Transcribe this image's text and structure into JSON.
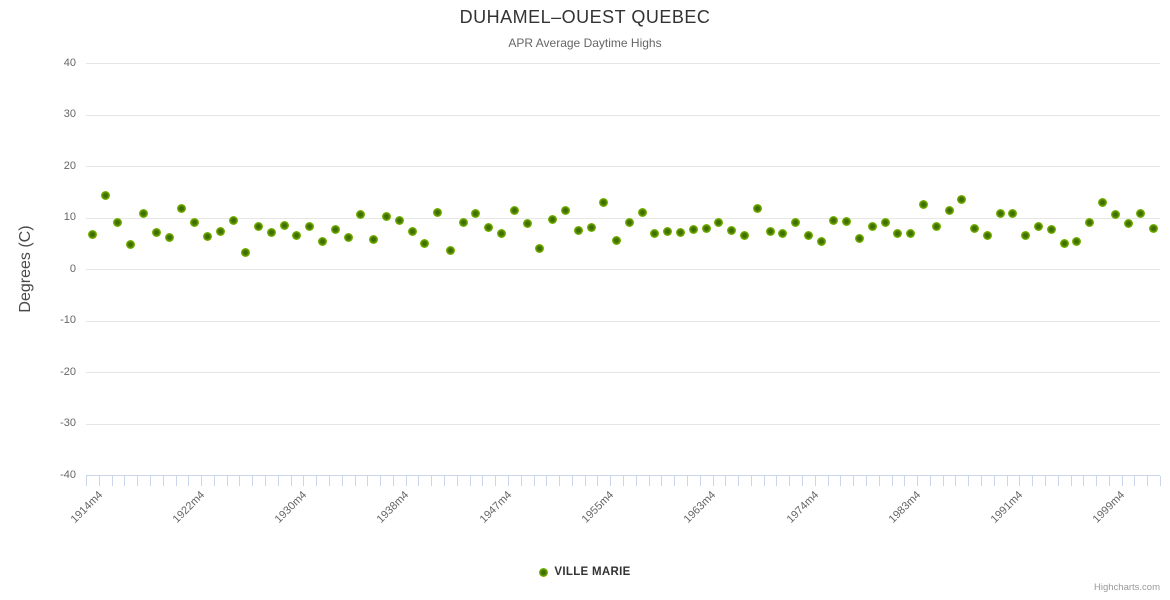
{
  "credits": "Highcharts.com",
  "chart_data": {
    "type": "scatter",
    "title": "DUHAMEL–OUEST QUEBEC",
    "subtitle": "APR Average Daytime Highs",
    "xlabel": "",
    "ylabel": "Degrees (C)",
    "ylim": [
      -40,
      40
    ],
    "y_ticks": [
      40,
      30,
      20,
      10,
      0,
      -10,
      -20,
      -30,
      -40
    ],
    "grid": "horizontal",
    "legend_position": "bottom",
    "x_tick_indices": [
      0,
      8,
      16,
      24,
      32,
      40,
      48,
      56,
      64,
      72,
      80
    ],
    "x_tick_labels": [
      "1914m4",
      "1922m4",
      "1930m4",
      "1938m4",
      "1947m4",
      "1955m4",
      "1963m4",
      "1974m4",
      "1983m4",
      "1991m4",
      "1999m4"
    ],
    "series": [
      {
        "name": "VILLE MARIE",
        "values": [
          6.7,
          14.2,
          9.1,
          4.8,
          10.8,
          7.1,
          6.2,
          11.7,
          9.0,
          6.3,
          7.2,
          9.5,
          3.3,
          8.3,
          7.0,
          8.5,
          6.5,
          8.2,
          5.4,
          7.7,
          6.2,
          10.5,
          5.7,
          10.2,
          9.4,
          7.2,
          4.9,
          11.0,
          3.6,
          9.0,
          10.8,
          8.0,
          6.9,
          11.3,
          8.9,
          3.9,
          9.7,
          11.4,
          7.5,
          8.0,
          12.9,
          5.6,
          9.0,
          10.9,
          6.9,
          7.2,
          7.0,
          7.6,
          7.8,
          9.1,
          7.5,
          6.6,
          11.7,
          7.3,
          6.9,
          9.0,
          6.5,
          5.4,
          9.5,
          9.3,
          6.0,
          8.3,
          9.0,
          6.9,
          6.9,
          12.5,
          8.2,
          11.4,
          13.4,
          7.9,
          6.6,
          10.7,
          10.7,
          6.6,
          8.2,
          7.6,
          5.0,
          5.3,
          9.0,
          12.9,
          10.6,
          8.8,
          10.7,
          7.9
        ]
      }
    ],
    "colors": {
      "marker": "#7ab800",
      "marker_center": "#3f6e02",
      "marker_edge": "#8ed321",
      "grid": "#e6e6e6",
      "axis": "#ccd6eb",
      "title": "#333333",
      "subtitle": "#666666",
      "labels": "#666666"
    }
  }
}
